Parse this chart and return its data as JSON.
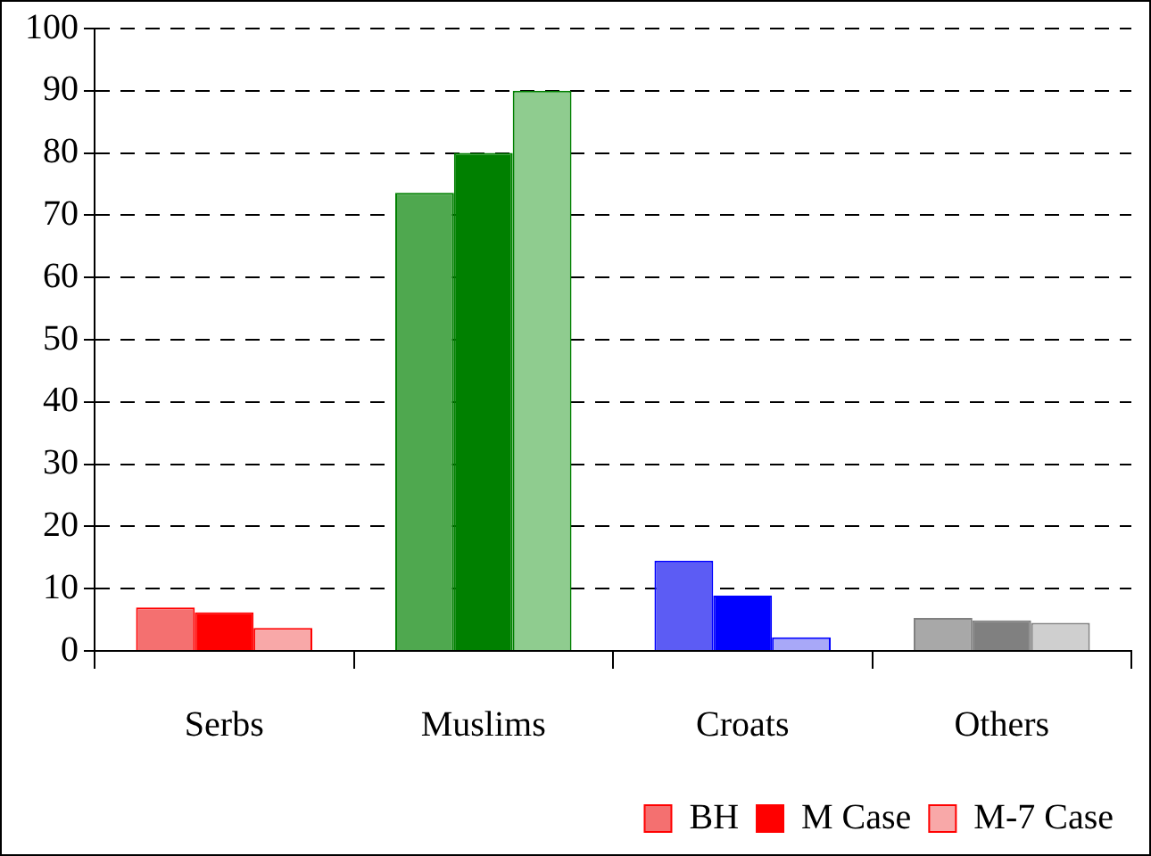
{
  "chart_data": {
    "type": "bar",
    "categories": [
      "Serbs",
      "Muslims",
      "Croats",
      "Others"
    ],
    "series": [
      {
        "name": "BH",
        "colors": [
          "#f47070",
          "#4fa84f",
          "#5c5cf4",
          "#a8a8a8"
        ],
        "values": [
          7,
          73.6,
          14.5,
          5.3
        ]
      },
      {
        "name": "M Case",
        "colors": [
          "#ff0000",
          "#008000",
          "#0000ff",
          "#808080"
        ],
        "values": [
          6.2,
          80,
          8.9,
          4.9
        ]
      },
      {
        "name": "M-7 Case",
        "colors": [
          "#f8a8a8",
          "#8fcc8f",
          "#a8a8f8",
          "#cfcfcf"
        ],
        "values": [
          3.7,
          90,
          2.2,
          4.5
        ]
      }
    ],
    "ylim": [
      0,
      100
    ],
    "yticks": [
      0,
      10,
      20,
      30,
      40,
      50,
      60,
      70,
      80,
      90,
      100
    ],
    "grid": "y",
    "legend": "bottom right"
  }
}
